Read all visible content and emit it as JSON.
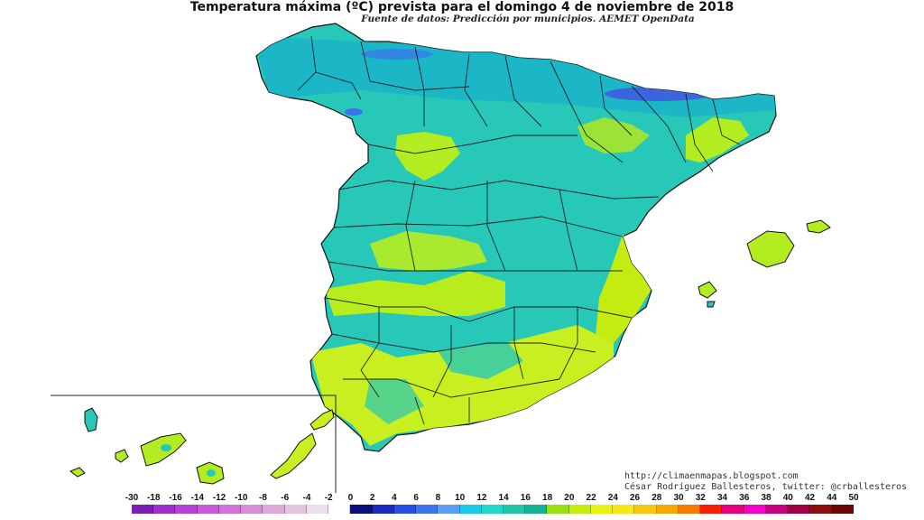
{
  "header": {
    "title": "Temperatura máxima (ºC) prevista para el domingo 4 de noviembre de 2018",
    "subtitle": "Fuente de datos: Predicción por municipios. AEMET OpenData"
  },
  "credits": {
    "blog": "http://climaenmapas.blogspot.com",
    "author": "César Rodríguez Ballesteros, twitter: @crballesteros"
  },
  "legend": {
    "labels": [
      "-30",
      "-18",
      "-16",
      "-14",
      "-12",
      "-10",
      "-8",
      "-6",
      "-4",
      "-2",
      "0",
      "2",
      "4",
      "6",
      "8",
      "10",
      "12",
      "14",
      "16",
      "18",
      "20",
      "22",
      "24",
      "26",
      "28",
      "30",
      "32",
      "34",
      "36",
      "38",
      "40",
      "42",
      "44",
      "50"
    ],
    "colors": [
      "#7a1fb2",
      "#9a2fcc",
      "#b640d6",
      "#c65ad8",
      "#d274d6",
      "#d88ed6",
      "#dcaad8",
      "#e2c4e0",
      "#ece0ee",
      "#ffffff",
      "#0a1078",
      "#1a2cc0",
      "#2850e0",
      "#3c74ec",
      "#5c9ef2",
      "#1ec8e8",
      "#22d6c8",
      "#22c4a8",
      "#18b096",
      "#96e014",
      "#c4ec10",
      "#e8f410",
      "#f4e81a",
      "#f4c810",
      "#f4a800",
      "#f47a00",
      "#f42000",
      "#e4007c",
      "#f000c8",
      "#c80080",
      "#a00040",
      "#8a0e0e",
      "#6a0808"
    ]
  },
  "map": {
    "colors": {
      "base": "#28c8b8",
      "coast_cool": "#1ab0c8",
      "warm": "#b4ec22",
      "warmer": "#c8f020",
      "cold": "#4868e0",
      "border": "#111111"
    }
  }
}
